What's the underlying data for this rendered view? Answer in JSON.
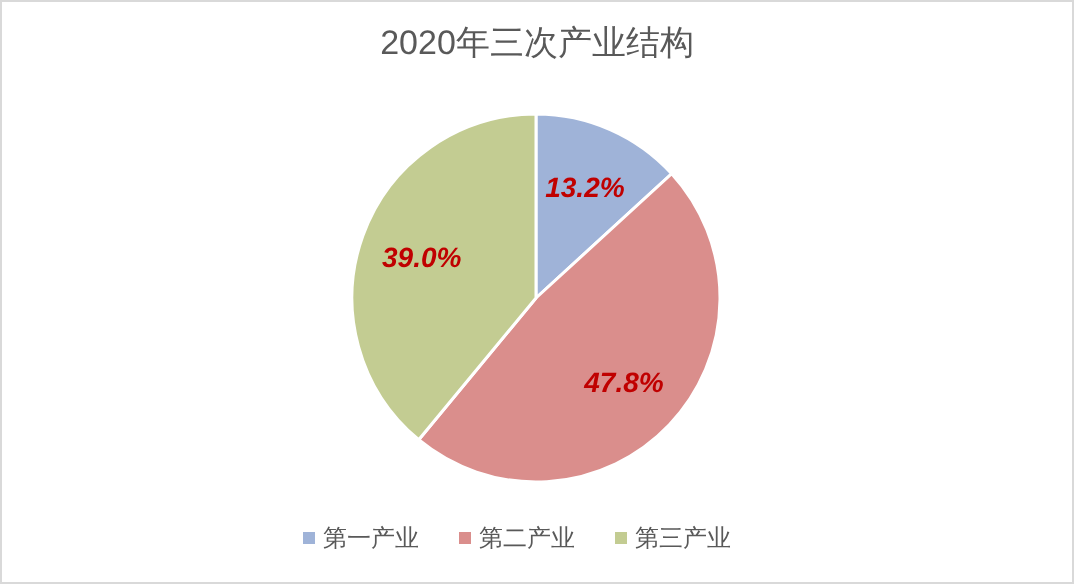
{
  "chart_data": {
    "type": "pie",
    "title": "2020年三次产业结构",
    "categories": [
      "第一产业",
      "第二产业",
      "第三产业"
    ],
    "values": [
      13.2,
      47.8,
      39.0
    ],
    "colors": [
      "#9fb3d8",
      "#da8e8c",
      "#c3cc92"
    ],
    "value_labels": [
      "13.2%",
      "47.8%",
      "39.0%"
    ],
    "legend": "bottom"
  }
}
